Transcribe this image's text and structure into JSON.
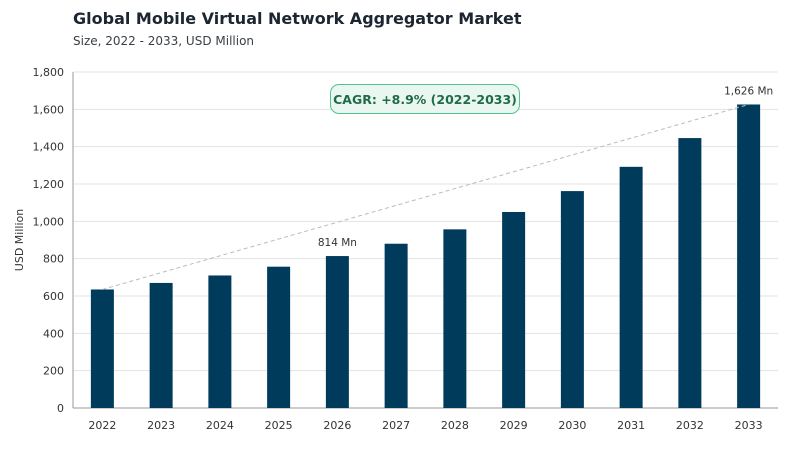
{
  "header": {
    "title": "Global Mobile Virtual Network Aggregator Market",
    "subtitle": "Size, 2022 - 2033, USD Million"
  },
  "annotation": {
    "cagr": "CAGR: +8.9% (2022-2033)"
  },
  "colors": {
    "bar": "#003b5c",
    "trend": "#bbbbbb",
    "grid": "#e3e3e3",
    "axis": "#999999",
    "cagr_border": "#4ec28f",
    "cagr_bg": "#eaf7f0"
  },
  "chart_data": {
    "type": "bar",
    "title": "Global Mobile Virtual Network Aggregator Market",
    "subtitle": "Size, 2022 - 2033, USD Million",
    "xlabel": "",
    "ylabel": "USD Million",
    "ylim": [
      0,
      1800
    ],
    "yticks": [
      0,
      200,
      400,
      600,
      800,
      1000,
      1200,
      1400,
      1600,
      1800
    ],
    "ytick_labels": [
      "0",
      "200",
      "400",
      "600",
      "800",
      "1,000",
      "1,200",
      "1,400",
      "1,600",
      "1,800"
    ],
    "categories": [
      "2022",
      "2023",
      "2024",
      "2025",
      "2026",
      "2027",
      "2028",
      "2029",
      "2030",
      "2031",
      "2032",
      "2033"
    ],
    "values": [
      635,
      670,
      710,
      757,
      814,
      880,
      957,
      1050,
      1162,
      1292,
      1446,
      1626
    ],
    "data_labels": [
      {
        "category": "2026",
        "text": "814 Mn"
      },
      {
        "category": "2033",
        "text": "1,626 Mn"
      }
    ],
    "trend_line": {
      "from": "2022",
      "to": "2033",
      "style": "dashed"
    },
    "grid": true,
    "legend": "none"
  }
}
